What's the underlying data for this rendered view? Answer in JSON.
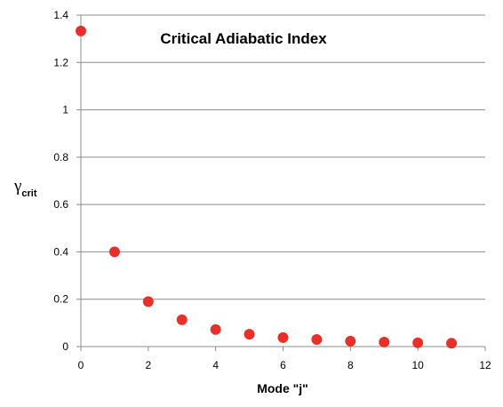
{
  "chart_data": {
    "type": "scatter",
    "title": "Critical Adiabatic Index",
    "xlabel": "Mode \"j\"",
    "ylabel": {
      "symbol": "γ",
      "subscript": "crit"
    },
    "xlim": [
      0,
      12
    ],
    "ylim": [
      0,
      1.4
    ],
    "xticks": [
      "0",
      "2",
      "4",
      "6",
      "8",
      "10",
      "12"
    ],
    "yticks": [
      "0",
      "0.2",
      "0.4",
      "0.6",
      "0.8",
      "1",
      "1.2",
      "1.4"
    ],
    "grid": "horizontal",
    "legend": "none",
    "marker_color": "#e8302a",
    "series": [
      {
        "x": [
          0,
          1,
          2,
          3,
          4,
          5,
          6,
          7,
          8,
          9,
          10,
          11
        ],
        "y": [
          1.333,
          0.4,
          0.19,
          0.113,
          0.072,
          0.052,
          0.038,
          0.03,
          0.023,
          0.019,
          0.016,
          0.014
        ]
      }
    ]
  }
}
